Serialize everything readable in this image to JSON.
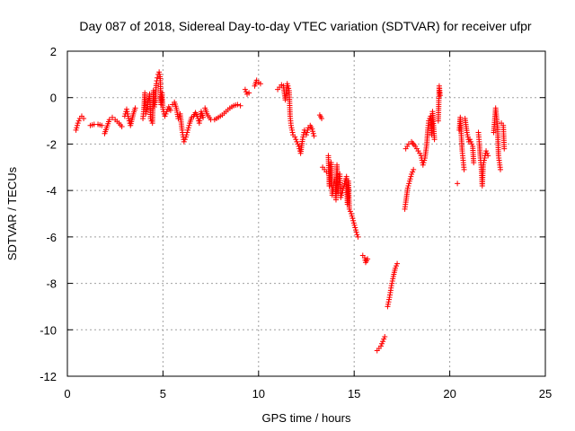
{
  "chart_data": {
    "type": "scatter",
    "title": "Day 087 of 2018, Sidereal Day-to-day VTEC variation (SDTVAR) for receiver ufpr",
    "xlabel": "GPS time / hours",
    "ylabel": "SDTVAR / TECUs",
    "xlim": [
      0,
      25
    ],
    "ylim": [
      -12,
      2
    ],
    "xticks": [
      0,
      5,
      10,
      15,
      20,
      25
    ],
    "yticks": [
      -12,
      -10,
      -8,
      -6,
      -4,
      -2,
      0,
      2
    ],
    "grid": true,
    "marker": "+",
    "color": "#ff0000",
    "segments": [
      [
        [
          0.45,
          -1.4
        ],
        [
          0.55,
          -1.1
        ],
        [
          0.65,
          -0.9
        ],
        [
          0.75,
          -0.8
        ],
        [
          0.85,
          -0.9
        ]
      ],
      [
        [
          1.2,
          -1.2
        ],
        [
          1.4,
          -1.15
        ],
        [
          1.6,
          -1.15
        ],
        [
          1.8,
          -1.2
        ]
      ],
      [
        [
          1.95,
          -1.55
        ],
        [
          2.05,
          -1.3
        ],
        [
          2.2,
          -0.95
        ],
        [
          2.35,
          -0.85
        ],
        [
          2.5,
          -0.95
        ],
        [
          2.7,
          -1.1
        ],
        [
          2.85,
          -1.25
        ]
      ],
      [
        [
          3.0,
          -0.8
        ],
        [
          3.1,
          -0.5
        ],
        [
          3.2,
          -0.9
        ],
        [
          3.3,
          -1.2
        ],
        [
          3.45,
          -0.7
        ],
        [
          3.55,
          -0.45
        ]
      ],
      [
        [
          3.95,
          -0.9
        ],
        [
          4.0,
          -0.5
        ],
        [
          4.05,
          0.2
        ],
        [
          4.1,
          -0.7
        ],
        [
          4.2,
          -0.3
        ],
        [
          4.3,
          0.15
        ],
        [
          4.35,
          -0.9
        ],
        [
          4.45,
          -1.1
        ],
        [
          4.5,
          0.3
        ],
        [
          4.55,
          -0.4
        ],
        [
          4.6,
          -0.2
        ],
        [
          4.65,
          0.6
        ],
        [
          4.7,
          0.85
        ],
        [
          4.75,
          1.0
        ],
        [
          4.8,
          1.1
        ],
        [
          4.85,
          0.9
        ],
        [
          4.9,
          -0.3
        ],
        [
          4.95,
          0.2
        ],
        [
          5.0,
          -0.5
        ],
        [
          5.1,
          -0.8
        ],
        [
          5.2,
          -0.6
        ],
        [
          5.3,
          -0.4
        ],
        [
          5.4,
          -0.55
        ]
      ],
      [
        [
          5.5,
          -0.3
        ],
        [
          5.6,
          -0.2
        ],
        [
          5.7,
          -0.45
        ],
        [
          5.8,
          -0.9
        ],
        [
          5.9,
          -0.7
        ],
        [
          6.0,
          -1.4
        ],
        [
          6.1,
          -1.9
        ],
        [
          6.2,
          -1.7
        ],
        [
          6.3,
          -1.4
        ],
        [
          6.4,
          -1.1
        ],
        [
          6.5,
          -0.85
        ],
        [
          6.6,
          -0.8
        ],
        [
          6.7,
          -0.65
        ],
        [
          6.8,
          -0.8
        ],
        [
          6.9,
          -1.1
        ],
        [
          7.0,
          -0.6
        ],
        [
          7.1,
          -0.85
        ]
      ],
      [
        [
          7.2,
          -0.45
        ],
        [
          7.3,
          -0.7
        ],
        [
          7.5,
          -0.95
        ],
        [
          7.7,
          -0.95
        ],
        [
          7.9,
          -0.85
        ],
        [
          8.1,
          -0.75
        ],
        [
          8.3,
          -0.6
        ],
        [
          8.5,
          -0.45
        ],
        [
          8.7,
          -0.35
        ],
        [
          8.9,
          -0.3
        ],
        [
          9.05,
          -0.35
        ]
      ],
      [
        [
          9.3,
          0.35
        ],
        [
          9.4,
          0.15
        ],
        [
          9.5,
          0.2
        ]
      ],
      [
        [
          9.8,
          0.5
        ],
        [
          9.9,
          0.75
        ],
        [
          10.0,
          0.65
        ],
        [
          10.1,
          0.6
        ]
      ],
      [
        [
          11.0,
          0.35
        ],
        [
          11.1,
          0.45
        ],
        [
          11.2,
          0.55
        ],
        [
          11.3,
          0.5
        ],
        [
          11.4,
          -0.1
        ],
        [
          11.5,
          0.6
        ],
        [
          11.6,
          0.3
        ],
        [
          11.65,
          -0.8
        ],
        [
          11.7,
          -1.2
        ],
        [
          11.8,
          -1.6
        ],
        [
          11.9,
          -1.7
        ],
        [
          12.0,
          -1.9
        ],
        [
          12.1,
          -2.1
        ],
        [
          12.2,
          -2.4
        ],
        [
          12.3,
          -1.8
        ],
        [
          12.4,
          -1.4
        ],
        [
          12.5,
          -1.6
        ],
        [
          12.6,
          -1.3
        ],
        [
          12.7,
          -1.2
        ],
        [
          12.8,
          -1.35
        ],
        [
          12.9,
          -1.65
        ]
      ],
      [
        [
          13.2,
          -0.75
        ],
        [
          13.3,
          -0.9
        ],
        [
          13.35,
          -3.0
        ],
        [
          13.45,
          -3.1
        ],
        [
          13.55,
          -3.2
        ]
      ],
      [
        [
          13.65,
          -2.5
        ],
        [
          13.7,
          -3.8
        ],
        [
          13.8,
          -2.8
        ],
        [
          13.85,
          -4.2
        ],
        [
          13.95,
          -3.6
        ],
        [
          14.0,
          -3.5
        ],
        [
          14.05,
          -4.4
        ],
        [
          14.1,
          -2.9
        ],
        [
          14.15,
          -4.1
        ],
        [
          14.25,
          -3.3
        ],
        [
          14.3,
          -4.3
        ],
        [
          14.4,
          -4.0
        ],
        [
          14.5,
          -3.7
        ],
        [
          14.6,
          -3.4
        ],
        [
          14.65,
          -4.6
        ],
        [
          14.7,
          -3.6
        ],
        [
          14.75,
          -4.8
        ],
        [
          14.85,
          -5.0
        ],
        [
          14.95,
          -5.3
        ],
        [
          15.05,
          -5.6
        ],
        [
          15.15,
          -5.9
        ],
        [
          15.2,
          -6.0
        ]
      ],
      [
        [
          15.45,
          -6.8
        ],
        [
          15.55,
          -6.9
        ],
        [
          15.6,
          -7.1
        ],
        [
          15.7,
          -6.95
        ]
      ],
      [
        [
          16.2,
          -10.9
        ],
        [
          16.3,
          -10.8
        ],
        [
          16.4,
          -10.7
        ],
        [
          16.5,
          -10.5
        ],
        [
          16.6,
          -10.3
        ]
      ],
      [
        [
          16.75,
          -9.0
        ],
        [
          16.85,
          -8.6
        ],
        [
          16.95,
          -8.1
        ],
        [
          17.05,
          -7.7
        ],
        [
          17.15,
          -7.35
        ],
        [
          17.25,
          -7.15
        ]
      ],
      [
        [
          17.65,
          -4.8
        ],
        [
          17.7,
          -4.5
        ],
        [
          17.8,
          -3.9
        ],
        [
          17.9,
          -3.6
        ],
        [
          18.0,
          -3.3
        ],
        [
          18.1,
          -3.1
        ]
      ],
      [
        [
          17.7,
          -2.2
        ],
        [
          17.85,
          -2.0
        ],
        [
          18.0,
          -1.9
        ],
        [
          18.2,
          -2.1
        ],
        [
          18.35,
          -2.3
        ],
        [
          18.5,
          -2.5
        ],
        [
          18.6,
          -2.9
        ],
        [
          18.7,
          -2.6
        ],
        [
          18.8,
          -2.0
        ],
        [
          18.85,
          -1.4
        ],
        [
          18.9,
          -1.0
        ],
        [
          19.0,
          -0.8
        ],
        [
          19.05,
          -1.6
        ],
        [
          19.1,
          -0.6
        ],
        [
          19.2,
          -1.8
        ]
      ],
      [
        [
          19.4,
          -1.0
        ],
        [
          19.45,
          0.5
        ],
        [
          19.5,
          0.1
        ]
      ],
      [
        [
          20.4,
          -3.7
        ],
        [
          20.5,
          -1.4
        ],
        [
          20.55,
          -0.85
        ],
        [
          20.65,
          -2.3
        ],
        [
          20.7,
          -2.7
        ],
        [
          20.75,
          -3.1
        ],
        [
          20.8,
          -0.9
        ],
        [
          20.9,
          -1.5
        ],
        [
          21.0,
          -1.9
        ],
        [
          21.05,
          -1.8
        ],
        [
          21.2,
          -2.1
        ],
        [
          21.25,
          -2.8
        ]
      ],
      [
        [
          21.5,
          -1.5
        ],
        [
          21.55,
          -2.0
        ],
        [
          21.6,
          -2.6
        ],
        [
          21.65,
          -3.0
        ],
        [
          21.7,
          -3.8
        ],
        [
          21.75,
          -2.9
        ],
        [
          21.8,
          -2.7
        ],
        [
          21.9,
          -2.3
        ],
        [
          22.0,
          -2.5
        ]
      ],
      [
        [
          22.3,
          -1.5
        ],
        [
          22.4,
          -0.45
        ],
        [
          22.5,
          -1.3
        ],
        [
          22.55,
          -2.5
        ],
        [
          22.6,
          -2.8
        ],
        [
          22.65,
          -3.1
        ],
        [
          22.7,
          -1.1
        ],
        [
          22.8,
          -1.2
        ],
        [
          22.85,
          -2.2
        ]
      ]
    ]
  }
}
